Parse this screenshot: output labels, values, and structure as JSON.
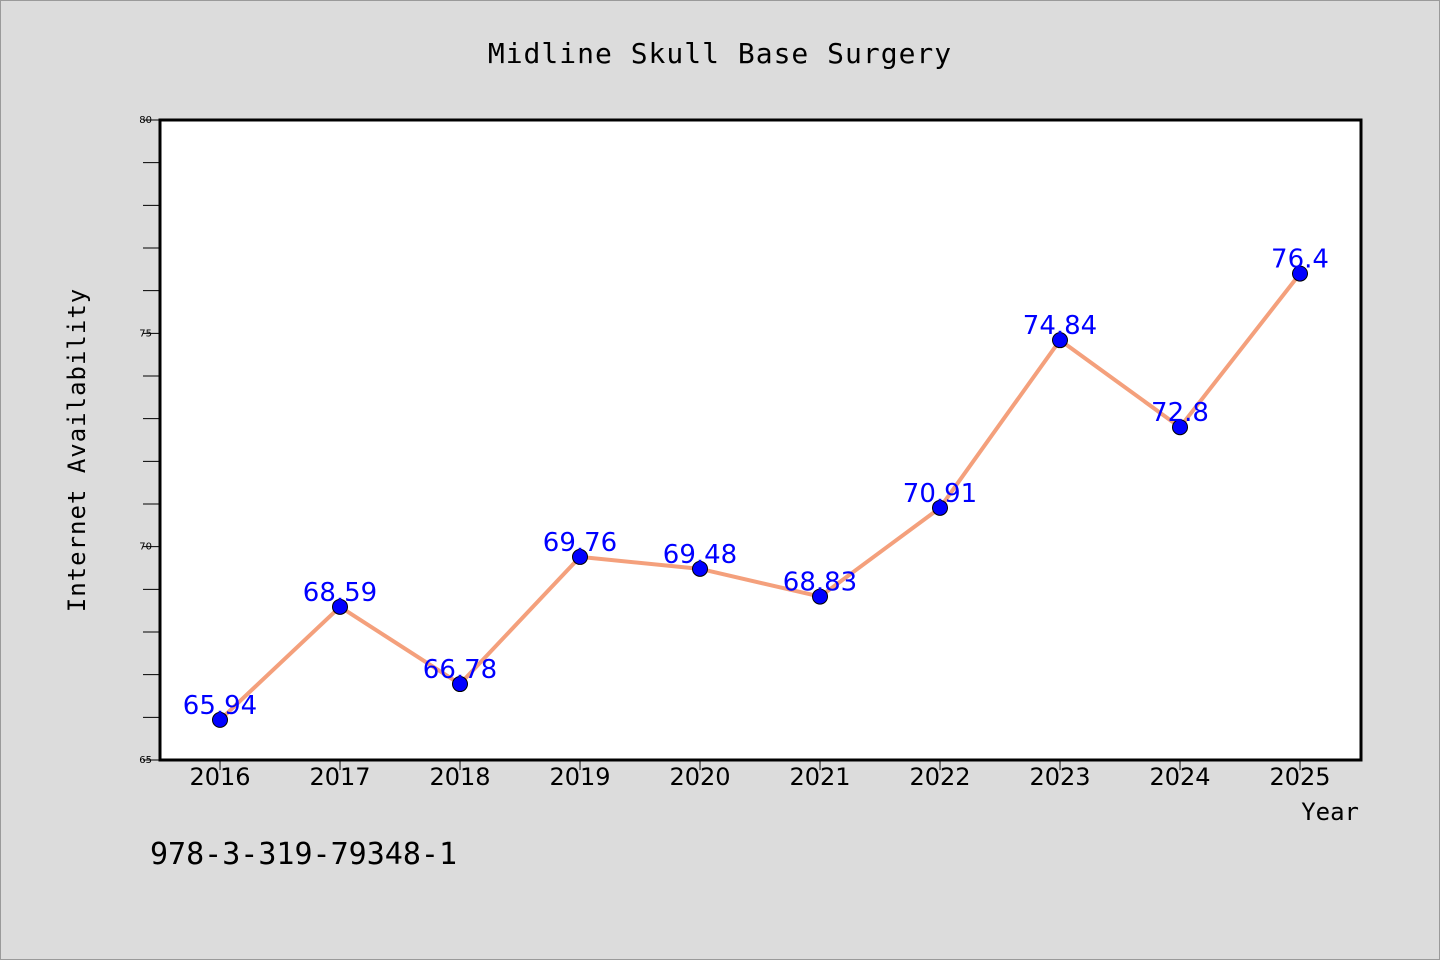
{
  "chart_data": {
    "type": "line",
    "title": "Midline Skull Base Surgery",
    "xlabel": "Year",
    "ylabel": "Internet Availability",
    "ylim": [
      65,
      80
    ],
    "y_major_ticks": [
      65,
      70,
      75,
      80
    ],
    "y_minor_step": 1,
    "grid": false,
    "line_color": "#f4a07c",
    "marker_color": "#0000ff",
    "label_color": "#0000ff",
    "x": [
      "2016",
      "2017",
      "2018",
      "2019",
      "2020",
      "2021",
      "2022",
      "2023",
      "2024",
      "2025"
    ],
    "series": [
      {
        "values": [
          65.94,
          68.59,
          66.78,
          69.76,
          69.48,
          68.83,
          70.91,
          74.84,
          72.8,
          76.4
        ],
        "labels": [
          "65.94",
          "68.59",
          "66.78",
          "69.76",
          "69.48",
          "68.83",
          "70.91",
          "74.84",
          "72.8",
          "76.4"
        ]
      }
    ]
  },
  "footer": {
    "text": "978-3-319-79348-1"
  }
}
